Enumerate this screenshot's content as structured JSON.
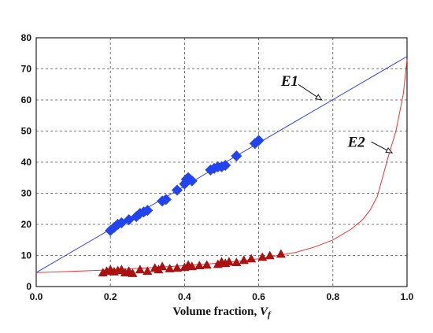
{
  "chart_data": {
    "type": "scatter",
    "title": "",
    "xlabel": "Volume fraction, ",
    "xlabel_symbol": "V",
    "xlabel_subscript": "f",
    "ylabel": "",
    "xlim": [
      0.0,
      1.0
    ],
    "ylim": [
      0,
      80
    ],
    "x_ticks": [
      "0.0",
      "0.2",
      "0.4",
      "0.6",
      "0.8",
      "1.0"
    ],
    "y_ticks": [
      "0",
      "10",
      "20",
      "30",
      "40",
      "50",
      "60",
      "70",
      "80"
    ],
    "grid": true,
    "series": [
      {
        "marker": "line",
        "color": "#3344ee",
        "x": [
          0.0,
          1.0
        ],
        "y": [
          4.5,
          74.0
        ]
      },
      {
        "marker": "line",
        "color": "#ee3333",
        "x": [
          0.0,
          0.1,
          0.2,
          0.3,
          0.4,
          0.5,
          0.6,
          0.7,
          0.75,
          0.8,
          0.85,
          0.88,
          0.9,
          0.92,
          0.95,
          0.97,
          0.99,
          1.0
        ],
        "y": [
          4.5,
          4.9,
          5.4,
          6.0,
          6.7,
          7.6,
          8.9,
          11.0,
          12.7,
          15.0,
          18.5,
          21.5,
          24.5,
          29.0,
          42.0,
          50.0,
          62.0,
          73.0
        ]
      },
      {
        "marker": "diamond",
        "color": "#2244ee",
        "x": [
          0.2,
          0.21,
          0.22,
          0.23,
          0.25,
          0.27,
          0.28,
          0.29,
          0.3,
          0.34,
          0.35,
          0.38,
          0.4,
          0.405,
          0.41,
          0.42,
          0.47,
          0.48,
          0.49,
          0.5,
          0.51,
          0.54,
          0.59,
          0.6
        ],
        "y": [
          18.0,
          19.0,
          20.0,
          20.5,
          21.5,
          22.5,
          23.5,
          24.0,
          24.5,
          27.5,
          28.0,
          31.0,
          33.0,
          34.5,
          35.0,
          34.0,
          37.5,
          38.0,
          38.5,
          38.5,
          39.0,
          42.0,
          46.0,
          47.0
        ]
      },
      {
        "marker": "triangle",
        "color": "#aa1111",
        "x": [
          0.18,
          0.19,
          0.2,
          0.21,
          0.22,
          0.23,
          0.24,
          0.25,
          0.26,
          0.28,
          0.3,
          0.32,
          0.33,
          0.34,
          0.36,
          0.38,
          0.4,
          0.41,
          0.42,
          0.44,
          0.46,
          0.49,
          0.5,
          0.51,
          0.52,
          0.54,
          0.56,
          0.58,
          0.61,
          0.63,
          0.66
        ],
        "y": [
          4.5,
          5.0,
          5.5,
          4.8,
          5.2,
          5.5,
          4.5,
          5.0,
          4.3,
          5.5,
          5.0,
          6.0,
          5.5,
          6.5,
          5.8,
          6.0,
          6.2,
          7.0,
          6.5,
          6.8,
          7.0,
          7.2,
          8.0,
          7.5,
          8.0,
          7.8,
          8.5,
          9.0,
          9.5,
          10.0,
          10.5
        ]
      }
    ],
    "annotations": [
      {
        "text": "E1",
        "x": 0.66,
        "y": 64.5,
        "arrow_to": [
          0.77,
          60.0
        ]
      },
      {
        "text": "E2",
        "x": 0.84,
        "y": 45.0,
        "arrow_to": [
          0.96,
          43.0
        ]
      }
    ]
  }
}
